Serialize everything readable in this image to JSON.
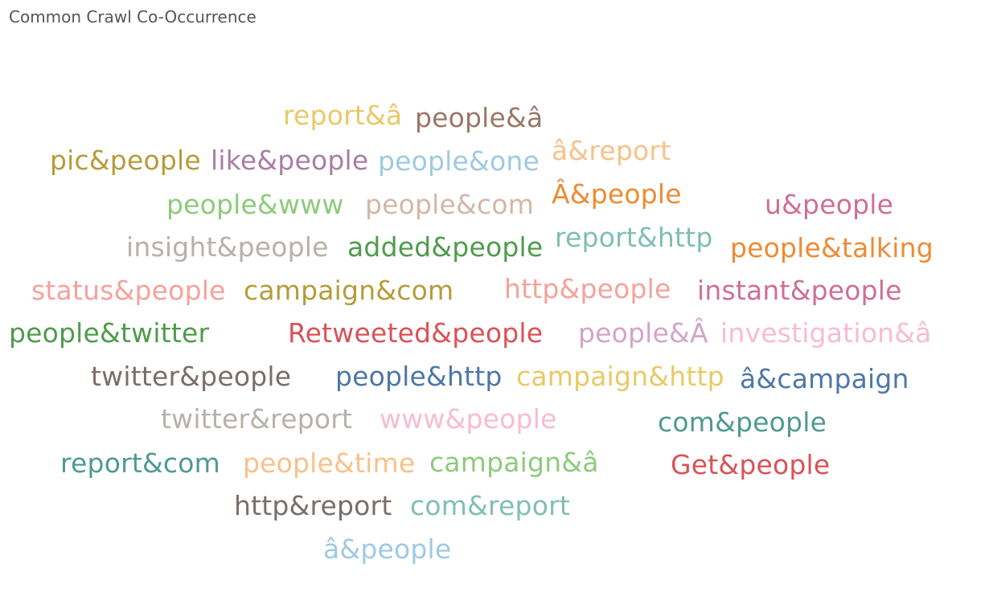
{
  "title": "Common Crawl Co-Occurrence",
  "chart_data": {
    "type": "word_cloud",
    "words": [
      {
        "text": "report&â",
        "color": "#e9c965"
      },
      {
        "text": "people&â",
        "color": "#9c7766"
      },
      {
        "text": "pic&people",
        "color": "#b59c3a"
      },
      {
        "text": "like&people",
        "color": "#a87ea4"
      },
      {
        "text": "people&one",
        "color": "#9ecae1"
      },
      {
        "text": "â&report",
        "color": "#f8c18a"
      },
      {
        "text": "people&www",
        "color": "#8ccb7b"
      },
      {
        "text": "people&com",
        "color": "#d3b7a7"
      },
      {
        "text": "Â&people",
        "color": "#ee8b34"
      },
      {
        "text": "u&people",
        "color": "#cf6f94"
      },
      {
        "text": "insight&people",
        "color": "#b7b0ab"
      },
      {
        "text": "added&people",
        "color": "#4f9b4b"
      },
      {
        "text": "report&http",
        "color": "#7fbfb1"
      },
      {
        "text": "people&talking",
        "color": "#ee8b34"
      },
      {
        "text": "status&people",
        "color": "#f4a29c"
      },
      {
        "text": "campaign&com",
        "color": "#b59c3a"
      },
      {
        "text": "http&people",
        "color": "#f4a29c"
      },
      {
        "text": "instant&people",
        "color": "#cf6f94"
      },
      {
        "text": "people&twitter",
        "color": "#4f9b4b"
      },
      {
        "text": "Retweeted&people",
        "color": "#d95256"
      },
      {
        "text": "people&Â",
        "color": "#d3a4ca"
      },
      {
        "text": "investigation&â",
        "color": "#f7bcd2"
      },
      {
        "text": "twitter&people",
        "color": "#7a6e6a"
      },
      {
        "text": "people&http",
        "color": "#4e77a7"
      },
      {
        "text": "campaign&http",
        "color": "#e9c965"
      },
      {
        "text": "â&campaign",
        "color": "#4e77a7"
      },
      {
        "text": "twitter&report",
        "color": "#b7b0ab"
      },
      {
        "text": "www&people",
        "color": "#f7bcd2"
      },
      {
        "text": "com&people",
        "color": "#4e9a93"
      },
      {
        "text": "report&com",
        "color": "#4e9a93"
      },
      {
        "text": "people&time",
        "color": "#f8c18a"
      },
      {
        "text": "campaign&â",
        "color": "#8ccb7b"
      },
      {
        "text": "Get&people",
        "color": "#d95256"
      },
      {
        "text": "http&report",
        "color": "#7a6e6a"
      },
      {
        "text": "com&report",
        "color": "#7fbfb1"
      },
      {
        "text": "â&people",
        "color": "#9ecae1"
      }
    ]
  }
}
